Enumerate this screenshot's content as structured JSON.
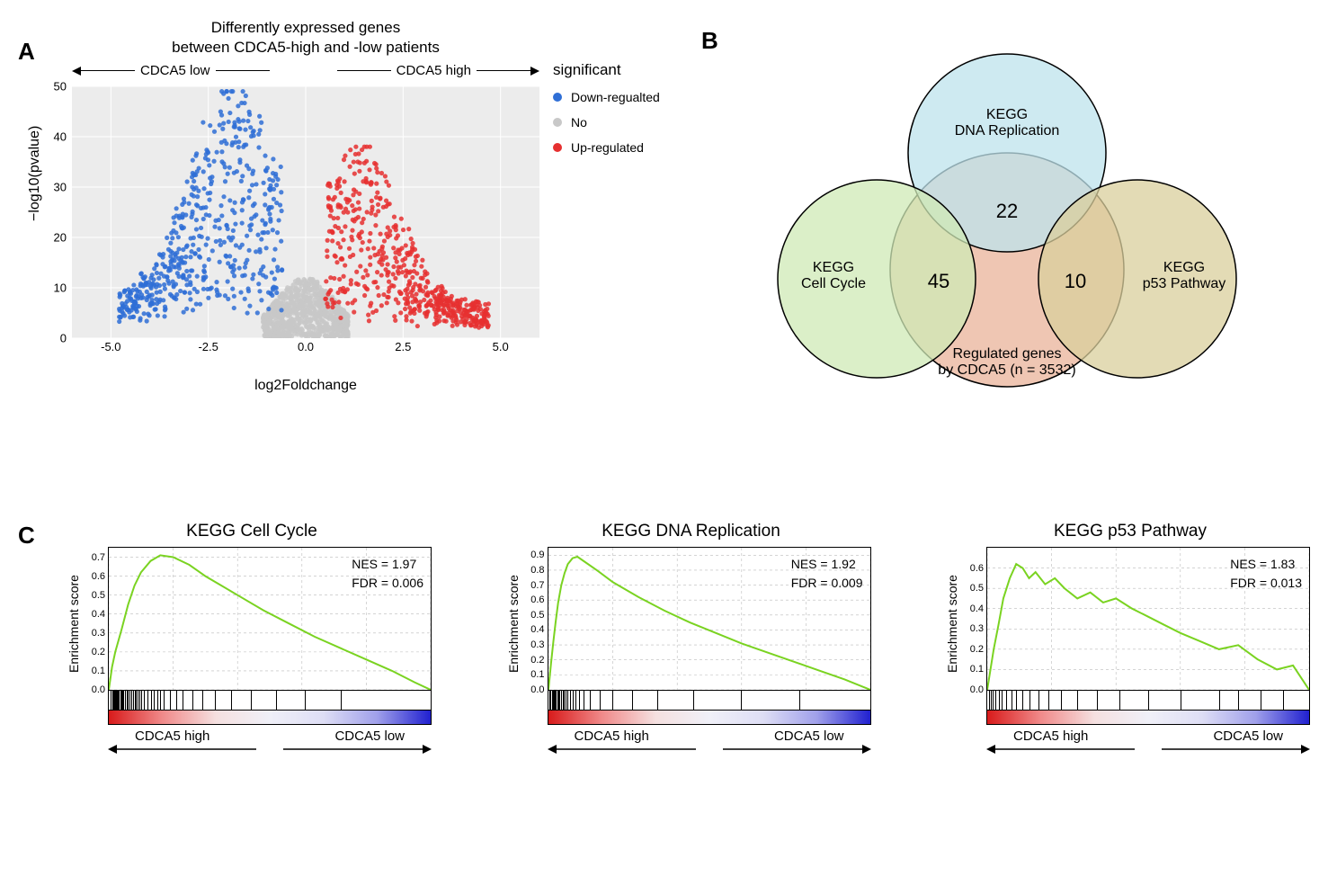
{
  "panels": {
    "a": "A",
    "b": "B",
    "c": "C"
  },
  "panelA": {
    "title_line1": "Differently expressed genes",
    "title_line2": "between CDCA5-high and -low patients",
    "arrow_left_label": "CDCA5 low",
    "arrow_right_label": "CDCA5 high",
    "y_label": "−log10(pvalue)",
    "x_label": "log2Foldchange",
    "legend_title": "significant",
    "legend_items": [
      {
        "label": "Down-regualted",
        "color": "#2f6fd6"
      },
      {
        "label": "No",
        "color": "#c8c8c8"
      },
      {
        "label": "Up-regulated",
        "color": "#e63030"
      }
    ],
    "xlim": [
      -6,
      6
    ],
    "ylim": [
      0,
      50
    ],
    "xticks": [
      -5.0,
      -2.5,
      0.0,
      2.5,
      5.0
    ],
    "yticks": [
      0,
      10,
      20,
      30,
      40,
      50
    ],
    "background_color": "#ececec",
    "grid_color": "#ffffff",
    "point_radius": 2.6
  },
  "panelB": {
    "circles": {
      "top": {
        "label_line1": "KEGG",
        "label_line2": "DNA Replication",
        "fill": "#bde3ec",
        "stroke": "#000"
      },
      "left": {
        "label_line1": "KEGG",
        "label_line2": "Cell Cycle",
        "fill": "#cfe9b6",
        "stroke": "#000"
      },
      "right": {
        "label_line1": "KEGG",
        "label_line2": "p53 Pathway",
        "fill": "#d9cf9c",
        "stroke": "#000"
      },
      "center": {
        "label_line1": "Regulated genes",
        "label_line2": "by CDCA5 (n = 3532)",
        "fill": "#e9b39a",
        "stroke": "#000"
      }
    },
    "overlap_values": {
      "top": "22",
      "left": "45",
      "right": "10"
    },
    "font_size_labels": 16,
    "font_size_values": 22
  },
  "panelC": {
    "y_label": "Enrichment score",
    "left_arrow_label": "CDCA5 high",
    "right_arrow_label": "CDCA5 low",
    "line_color": "#7ad321",
    "plots": [
      {
        "title": "KEGG Cell Cycle",
        "nes": "NES = 1.97",
        "fdr": "FDR = 0.006",
        "ylim": [
          0.0,
          0.75
        ],
        "yticks": [
          0.0,
          0.1,
          0.2,
          0.3,
          0.4,
          0.5,
          0.6,
          0.7
        ],
        "curve": [
          [
            0,
            0
          ],
          [
            0.01,
            0.12
          ],
          [
            0.02,
            0.2
          ],
          [
            0.04,
            0.32
          ],
          [
            0.06,
            0.45
          ],
          [
            0.08,
            0.55
          ],
          [
            0.1,
            0.62
          ],
          [
            0.13,
            0.68
          ],
          [
            0.16,
            0.71
          ],
          [
            0.2,
            0.7
          ],
          [
            0.25,
            0.66
          ],
          [
            0.3,
            0.6
          ],
          [
            0.35,
            0.55
          ],
          [
            0.4,
            0.5
          ],
          [
            0.48,
            0.42
          ],
          [
            0.56,
            0.35
          ],
          [
            0.64,
            0.28
          ],
          [
            0.72,
            0.22
          ],
          [
            0.8,
            0.16
          ],
          [
            0.88,
            0.1
          ],
          [
            0.95,
            0.04
          ],
          [
            1.0,
            0.0
          ]
        ],
        "rug": [
          0.005,
          0.01,
          0.012,
          0.015,
          0.018,
          0.02,
          0.022,
          0.025,
          0.028,
          0.03,
          0.032,
          0.035,
          0.038,
          0.04,
          0.043,
          0.046,
          0.05,
          0.055,
          0.06,
          0.065,
          0.07,
          0.075,
          0.08,
          0.085,
          0.09,
          0.095,
          0.1,
          0.11,
          0.12,
          0.13,
          0.14,
          0.15,
          0.16,
          0.17,
          0.19,
          0.21,
          0.23,
          0.26,
          0.29,
          0.33,
          0.38,
          0.44,
          0.52,
          0.61,
          0.72
        ]
      },
      {
        "title": "KEGG DNA Replication",
        "nes": "NES = 1.92",
        "fdr": "FDR = 0.009",
        "ylim": [
          0.0,
          0.95
        ],
        "yticks": [
          0.0,
          0.1,
          0.2,
          0.3,
          0.4,
          0.5,
          0.6,
          0.7,
          0.8,
          0.9
        ],
        "curve": [
          [
            0,
            0
          ],
          [
            0.008,
            0.18
          ],
          [
            0.015,
            0.32
          ],
          [
            0.022,
            0.45
          ],
          [
            0.03,
            0.58
          ],
          [
            0.04,
            0.7
          ],
          [
            0.05,
            0.78
          ],
          [
            0.06,
            0.84
          ],
          [
            0.075,
            0.88
          ],
          [
            0.09,
            0.89
          ],
          [
            0.11,
            0.86
          ],
          [
            0.15,
            0.8
          ],
          [
            0.2,
            0.72
          ],
          [
            0.28,
            0.62
          ],
          [
            0.36,
            0.53
          ],
          [
            0.44,
            0.45
          ],
          [
            0.52,
            0.38
          ],
          [
            0.6,
            0.31
          ],
          [
            0.68,
            0.25
          ],
          [
            0.76,
            0.19
          ],
          [
            0.84,
            0.13
          ],
          [
            0.92,
            0.07
          ],
          [
            1.0,
            0.0
          ]
        ],
        "rug": [
          0.004,
          0.008,
          0.012,
          0.015,
          0.018,
          0.022,
          0.025,
          0.028,
          0.032,
          0.036,
          0.04,
          0.045,
          0.05,
          0.055,
          0.06,
          0.068,
          0.076,
          0.085,
          0.095,
          0.11,
          0.13,
          0.16,
          0.2,
          0.26,
          0.34,
          0.45,
          0.6,
          0.78
        ]
      },
      {
        "title": "KEGG p53 Pathway",
        "nes": "NES = 1.83",
        "fdr": "FDR = 0.013",
        "ylim": [
          0.0,
          0.7
        ],
        "yticks": [
          0.0,
          0.1,
          0.2,
          0.3,
          0.4,
          0.5,
          0.6
        ],
        "curve": [
          [
            0,
            0
          ],
          [
            0.01,
            0.1
          ],
          [
            0.02,
            0.2
          ],
          [
            0.035,
            0.32
          ],
          [
            0.05,
            0.45
          ],
          [
            0.07,
            0.55
          ],
          [
            0.09,
            0.62
          ],
          [
            0.11,
            0.6
          ],
          [
            0.13,
            0.55
          ],
          [
            0.15,
            0.58
          ],
          [
            0.18,
            0.52
          ],
          [
            0.21,
            0.55
          ],
          [
            0.24,
            0.5
          ],
          [
            0.28,
            0.45
          ],
          [
            0.32,
            0.48
          ],
          [
            0.36,
            0.43
          ],
          [
            0.4,
            0.45
          ],
          [
            0.45,
            0.4
          ],
          [
            0.5,
            0.36
          ],
          [
            0.55,
            0.32
          ],
          [
            0.6,
            0.28
          ],
          [
            0.66,
            0.24
          ],
          [
            0.72,
            0.2
          ],
          [
            0.78,
            0.22
          ],
          [
            0.84,
            0.15
          ],
          [
            0.9,
            0.1
          ],
          [
            0.95,
            0.12
          ],
          [
            1.0,
            0.0
          ]
        ],
        "rug": [
          0.005,
          0.01,
          0.018,
          0.025,
          0.035,
          0.045,
          0.06,
          0.075,
          0.09,
          0.11,
          0.13,
          0.16,
          0.19,
          0.23,
          0.28,
          0.34,
          0.41,
          0.5,
          0.6,
          0.72,
          0.78,
          0.85,
          0.92
        ]
      }
    ]
  }
}
